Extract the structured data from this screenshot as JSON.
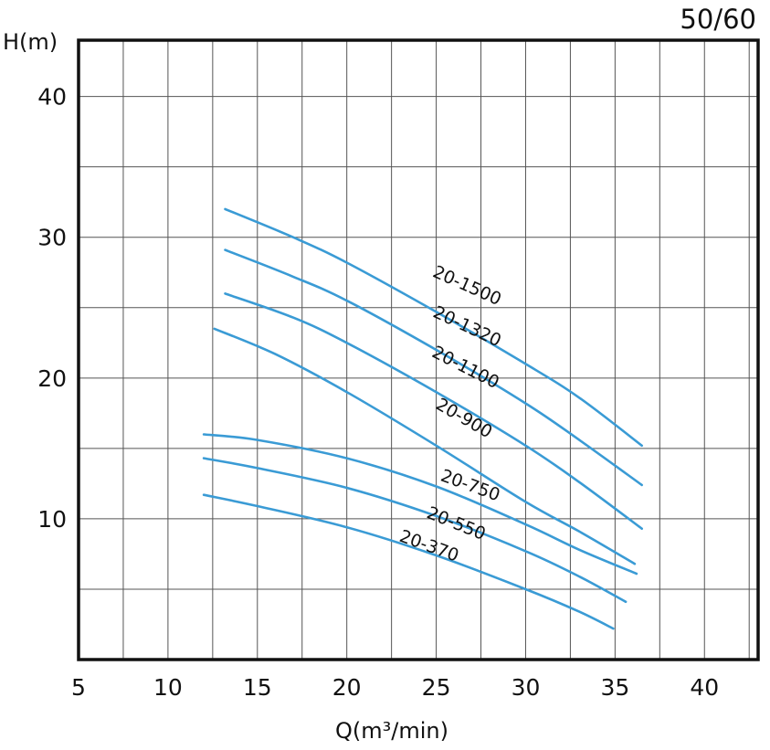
{
  "corner_label": "50/60",
  "chart_data": {
    "type": "line",
    "title": "",
    "xlabel": "Q(m³/min)",
    "ylabel": "H(m)",
    "xlim": [
      5,
      43
    ],
    "ylim": [
      0,
      44
    ],
    "x_ticks": [
      5,
      10,
      15,
      20,
      25,
      30,
      35,
      40
    ],
    "x_tick_labels": [
      "5",
      "10",
      "15",
      "20",
      "25",
      "30",
      "35",
      "40"
    ],
    "y_ticks": [
      10,
      20,
      30,
      40
    ],
    "y_tick_labels": [
      "10",
      "20",
      "30",
      "40"
    ],
    "x_grid_step": 2.5,
    "y_grid_step": 5,
    "grid": true,
    "series_color": "#3a9bd5",
    "series": [
      {
        "name": "20-1500",
        "label_at": [
          26.6,
          26.2
        ],
        "label_angle": 24,
        "points": [
          [
            13.2,
            32.0
          ],
          [
            17.0,
            30.0
          ],
          [
            20.0,
            28.2
          ],
          [
            25.0,
            24.7
          ],
          [
            30.0,
            21.0
          ],
          [
            33.0,
            18.6
          ],
          [
            36.5,
            15.2
          ]
        ]
      },
      {
        "name": "20-1320",
        "label_at": [
          26.6,
          23.3
        ],
        "label_angle": 25,
        "points": [
          [
            13.2,
            29.1
          ],
          [
            17.0,
            27.2
          ],
          [
            20.0,
            25.5
          ],
          [
            25.0,
            22.0
          ],
          [
            30.0,
            18.2
          ],
          [
            33.0,
            15.6
          ],
          [
            36.5,
            12.4
          ]
        ]
      },
      {
        "name": "20-1100",
        "label_at": [
          26.5,
          20.4
        ],
        "label_angle": 27,
        "points": [
          [
            13.2,
            26.0
          ],
          [
            17.0,
            24.3
          ],
          [
            20.0,
            22.5
          ],
          [
            25.0,
            19.0
          ],
          [
            30.0,
            15.2
          ],
          [
            33.0,
            12.6
          ],
          [
            36.5,
            9.3
          ]
        ]
      },
      {
        "name": "20-900",
        "label_at": [
          26.4,
          16.8
        ],
        "label_angle": 30,
        "points": [
          [
            12.6,
            23.5
          ],
          [
            16.0,
            21.7
          ],
          [
            20.0,
            19.0
          ],
          [
            25.0,
            15.2
          ],
          [
            30.0,
            11.2
          ],
          [
            33.0,
            9.1
          ],
          [
            36.1,
            6.8
          ]
        ]
      },
      {
        "name": "20-750",
        "label_at": [
          26.8,
          12.0
        ],
        "label_angle": 20,
        "points": [
          [
            12.0,
            16.0
          ],
          [
            15.0,
            15.6
          ],
          [
            20.0,
            14.3
          ],
          [
            25.0,
            12.3
          ],
          [
            30.0,
            9.6
          ],
          [
            33.0,
            7.8
          ],
          [
            36.2,
            6.1
          ]
        ]
      },
      {
        "name": "20-550",
        "label_at": [
          26.0,
          9.3
        ],
        "label_angle": 22,
        "points": [
          [
            12.0,
            14.3
          ],
          [
            15.0,
            13.6
          ],
          [
            20.0,
            12.2
          ],
          [
            25.0,
            10.2
          ],
          [
            30.0,
            7.7
          ],
          [
            33.0,
            5.9
          ],
          [
            35.6,
            4.1
          ]
        ]
      },
      {
        "name": "20-370",
        "label_at": [
          24.5,
          7.7
        ],
        "label_angle": 20,
        "points": [
          [
            12.0,
            11.7
          ],
          [
            15.0,
            10.9
          ],
          [
            20.0,
            9.4
          ],
          [
            25.0,
            7.4
          ],
          [
            30.0,
            5.0
          ],
          [
            33.0,
            3.4
          ],
          [
            34.9,
            2.2
          ]
        ]
      }
    ]
  }
}
